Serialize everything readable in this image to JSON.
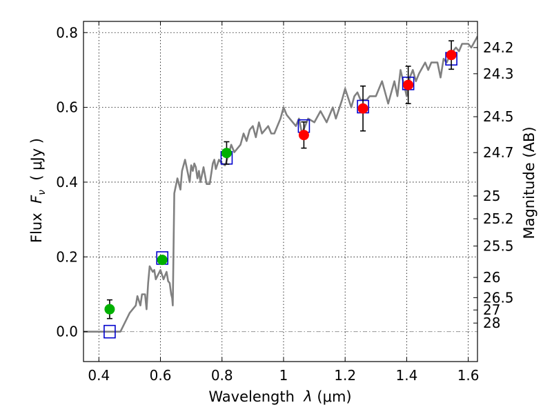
{
  "chart_data": {
    "type": "line+scatter",
    "xlabel": {
      "prefix": "Wavelength  ",
      "sym": "λ",
      "unit": " (μm)"
    },
    "ylabel": {
      "prefix": "Flux  ",
      "sym": "F",
      "sub": "ν",
      "unit": "  ( μJy )"
    },
    "y2label": "Magnitude (AB)",
    "xlim": [
      0.35,
      1.63
    ],
    "ylim": [
      -0.08,
      0.83
    ],
    "xticks": [
      0.4,
      0.6,
      0.8,
      1.0,
      1.2,
      1.4,
      1.6
    ],
    "xtick_labels": [
      "0.4",
      "0.6",
      "0.8",
      "1",
      "1.2",
      "1.4",
      "1.6"
    ],
    "yticks": [
      0.0,
      0.2,
      0.4,
      0.6,
      0.8
    ],
    "ytick_labels": [
      "0.0",
      "0.2",
      "0.4",
      "0.6",
      "0.8"
    ],
    "mag_ticks": [
      {
        "label": "24.2",
        "flux": 0.76
      },
      {
        "label": "24.3",
        "flux": 0.69
      },
      {
        "label": "24.5",
        "flux": 0.575
      },
      {
        "label": "24.7",
        "flux": 0.479
      },
      {
        "label": "25",
        "flux": 0.363
      },
      {
        "label": "25.2",
        "flux": 0.302
      },
      {
        "label": "25.5",
        "flux": 0.229
      },
      {
        "label": "26",
        "flux": 0.145
      },
      {
        "label": "26.5",
        "flux": 0.091
      },
      {
        "label": "27",
        "flux": 0.058
      },
      {
        "label": "28",
        "flux": 0.023
      }
    ],
    "model_spectrum": {
      "color": "#808080",
      "x": [
        0.35,
        0.47,
        0.5,
        0.52,
        0.525,
        0.535,
        0.54,
        0.55,
        0.555,
        0.56,
        0.565,
        0.575,
        0.58,
        0.585,
        0.6,
        0.61,
        0.62,
        0.625,
        0.63,
        0.635,
        0.638,
        0.64,
        0.645,
        0.655,
        0.665,
        0.67,
        0.68,
        0.69,
        0.695,
        0.7,
        0.705,
        0.71,
        0.715,
        0.72,
        0.725,
        0.73,
        0.74,
        0.75,
        0.76,
        0.77,
        0.775,
        0.78,
        0.79,
        0.8,
        0.81,
        0.82,
        0.83,
        0.84,
        0.86,
        0.87,
        0.88,
        0.89,
        0.9,
        0.91,
        0.92,
        0.93,
        0.95,
        0.96,
        0.97,
        0.98,
        0.99,
        1.0,
        1.01,
        1.02,
        1.04,
        1.05,
        1.06,
        1.08,
        1.1,
        1.12,
        1.14,
        1.16,
        1.17,
        1.19,
        1.2,
        1.22,
        1.23,
        1.24,
        1.25,
        1.27,
        1.28,
        1.3,
        1.32,
        1.34,
        1.36,
        1.37,
        1.38,
        1.4,
        1.41,
        1.42,
        1.43,
        1.44,
        1.46,
        1.47,
        1.48,
        1.5,
        1.51,
        1.52,
        1.53,
        1.54,
        1.56,
        1.57,
        1.58,
        1.6,
        1.61,
        1.63
      ],
      "y": [
        0.0,
        0.0,
        0.05,
        0.07,
        0.095,
        0.07,
        0.1,
        0.1,
        0.06,
        0.13,
        0.175,
        0.16,
        0.165,
        0.14,
        0.165,
        0.14,
        0.16,
        0.135,
        0.13,
        0.1,
        0.09,
        0.07,
        0.37,
        0.41,
        0.38,
        0.43,
        0.46,
        0.42,
        0.4,
        0.445,
        0.43,
        0.45,
        0.44,
        0.41,
        0.43,
        0.4,
        0.44,
        0.395,
        0.395,
        0.45,
        0.46,
        0.435,
        0.46,
        0.45,
        0.445,
        0.47,
        0.5,
        0.48,
        0.5,
        0.53,
        0.51,
        0.54,
        0.55,
        0.52,
        0.56,
        0.53,
        0.55,
        0.53,
        0.53,
        0.55,
        0.57,
        0.6,
        0.58,
        0.57,
        0.55,
        0.57,
        0.53,
        0.57,
        0.56,
        0.59,
        0.56,
        0.6,
        0.57,
        0.62,
        0.65,
        0.6,
        0.63,
        0.64,
        0.62,
        0.62,
        0.63,
        0.63,
        0.67,
        0.61,
        0.67,
        0.63,
        0.7,
        0.63,
        0.68,
        0.7,
        0.67,
        0.69,
        0.72,
        0.7,
        0.72,
        0.72,
        0.68,
        0.73,
        0.72,
        0.74,
        0.76,
        0.75,
        0.77,
        0.77,
        0.76,
        0.79
      ]
    },
    "synthetic_points": {
      "marker": "open-square",
      "color": "#0000cc",
      "x": [
        0.435,
        0.606,
        0.815,
        1.066,
        1.258,
        1.405,
        1.545
      ],
      "y": [
        0.0,
        0.197,
        0.465,
        0.55,
        0.602,
        0.664,
        0.73
      ]
    },
    "observed_green": {
      "marker": "filled-circle",
      "color": "#00b000",
      "x": [
        0.435,
        0.606,
        0.815
      ],
      "y": [
        0.06,
        0.192,
        0.478
      ],
      "yerr": [
        0.025,
        0.01,
        0.03
      ]
    },
    "observed_red": {
      "marker": "filled-circle",
      "color": "#ff0000",
      "x": [
        1.066,
        1.258,
        1.405,
        1.545
      ],
      "y": [
        0.526,
        0.597,
        0.66,
        0.74
      ],
      "yerr": [
        0.035,
        0.06,
        0.05,
        0.038
      ]
    },
    "zero_line": {
      "y": 0.0,
      "style": "dash-dot",
      "color": "#999999"
    },
    "grid": true
  }
}
